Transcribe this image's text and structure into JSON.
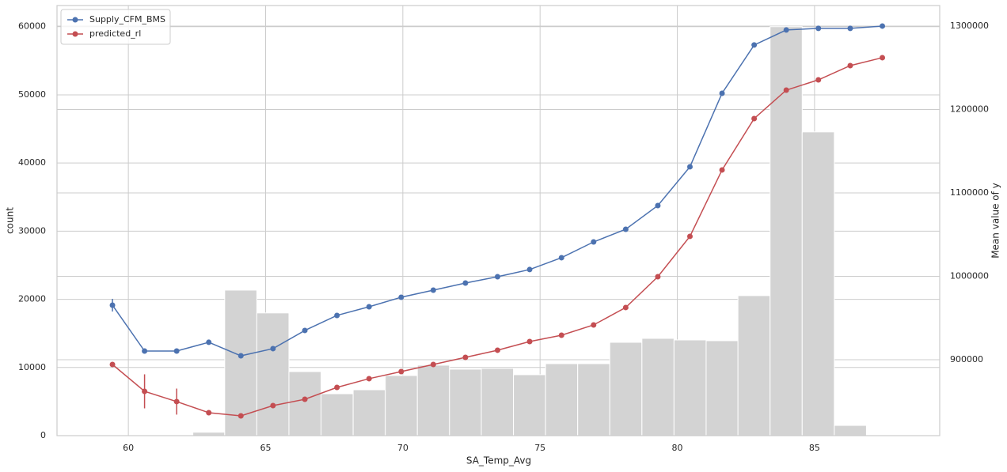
{
  "chart_data": {
    "type": "histogram",
    "xlabel": "SA_Temp_Avg",
    "ylabel": "count",
    "y2label": "Mean value of y",
    "bins": [
      58.84,
      60.01,
      61.18,
      62.35,
      63.51,
      64.68,
      65.85,
      67.02,
      68.19,
      69.36,
      70.53,
      71.7,
      72.86,
      74.03,
      75.2,
      76.37,
      77.54,
      78.71,
      79.88,
      81.05,
      82.21,
      83.38,
      84.55,
      85.72,
      86.89,
      88.06
    ],
    "counts": [
      0,
      0,
      0,
      500,
      21350,
      18000,
      9400,
      6150,
      6730,
      8820,
      10330,
      9750,
      9860,
      8940,
      10560,
      10560,
      13690,
      14270,
      14040,
      13930,
      20540,
      60000,
      44560,
      1500,
      0
    ],
    "color": "#d3d3d3",
    "x": [
      59.42,
      60.59,
      61.76,
      62.93,
      64.1,
      65.27,
      66.43,
      67.6,
      68.77,
      69.94,
      71.11,
      72.28,
      73.45,
      74.62,
      75.78,
      76.95,
      78.12,
      79.29,
      80.46,
      81.63,
      82.8,
      83.97,
      85.14,
      86.3,
      87.47
    ],
    "series": [
      {
        "name": "Supply_CFM_BMS",
        "type": "line",
        "axis": "y2",
        "color": "#4c72b0",
        "values": [
          965400,
          910400,
          910400,
          920900,
          904700,
          913300,
          935100,
          953100,
          963500,
          974900,
          983400,
          991900,
          999500,
          1008100,
          1022300,
          1041200,
          1056400,
          1084800,
          1131300,
          1219400,
          1277300,
          1295300,
          1297200,
          1297200,
          1300000
        ],
        "errors": [
          7600,
          null,
          null,
          null,
          null,
          null,
          null,
          null,
          null,
          null,
          null,
          null,
          null,
          null,
          null,
          null,
          null,
          null,
          null,
          null,
          null,
          null,
          null,
          null,
          null
        ]
      },
      {
        "name": "predicted_rl",
        "type": "line",
        "axis": "y2",
        "color": "#c44e52",
        "values": [
          894300,
          862100,
          849800,
          836500,
          832700,
          845000,
          852600,
          866800,
          877300,
          885800,
          894300,
          902800,
          911400,
          921800,
          929400,
          941700,
          962600,
          999500,
          1047900,
          1127500,
          1189100,
          1223200,
          1235500,
          1252600,
          1262100
        ],
        "errors": [
          null,
          20400,
          15600,
          null,
          null,
          null,
          null,
          null,
          null,
          null,
          null,
          null,
          null,
          null,
          null,
          null,
          null,
          null,
          null,
          null,
          null,
          null,
          null,
          null,
          null
        ]
      }
    ],
    "xlim": [
      57.4,
      89.56
    ],
    "xticks": [
      60,
      65,
      70,
      75,
      80,
      85
    ],
    "ylim": [
      0,
      63100
    ],
    "yticks": [
      0,
      10000,
      20000,
      30000,
      40000,
      50000,
      60000
    ],
    "y2lim": [
      809000,
      1324600
    ],
    "y2ticks": [
      900000,
      1000000,
      1100000,
      1200000,
      1300000
    ],
    "grid": true,
    "legend": "upper left"
  }
}
